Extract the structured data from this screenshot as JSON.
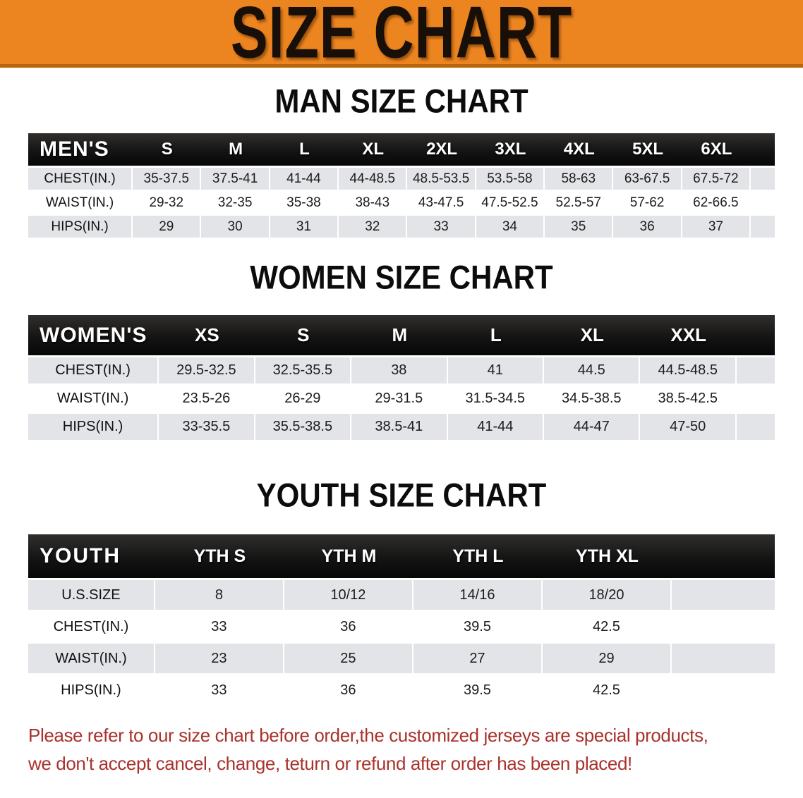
{
  "banner": {
    "title": "SIZE CHART"
  },
  "colors": {
    "banner_orange": "#EC8420",
    "banner_edge": "#B9650E",
    "header_bar": "#141414",
    "row_gray": "#E2E4E7",
    "disclaimer_red": "#A9322C"
  },
  "sections": [
    {
      "title": "MAN SIZE CHART",
      "table": {
        "header_label": "MEN'S",
        "columns": [
          "S",
          "M",
          "L",
          "XL",
          "2XL",
          "3XL",
          "4XL",
          "5XL",
          "6XL"
        ],
        "rows": [
          {
            "label": "CHEST(IN.)",
            "shade": "gray",
            "values": [
              "35-37.5",
              "37.5-41",
              "41-44",
              "44-48.5",
              "48.5-53.5",
              "53.5-58",
              "58-63",
              "63-67.5",
              "67.5-72"
            ]
          },
          {
            "label": "WAIST(IN.)",
            "shade": "white",
            "values": [
              "29-32",
              "32-35",
              "35-38",
              "38-43",
              "43-47.5",
              "47.5-52.5",
              "52.5-57",
              "57-62",
              "62-66.5"
            ]
          },
          {
            "label": "HIPS(IN.)",
            "shade": "gray",
            "values": [
              "29",
              "30",
              "31",
              "32",
              "33",
              "34",
              "35",
              "36",
              "37"
            ]
          }
        ]
      }
    },
    {
      "title": "WOMEN SIZE CHART",
      "table": {
        "header_label": "WOMEN'S",
        "columns": [
          "XS",
          "S",
          "M",
          "L",
          "XL",
          "XXL"
        ],
        "rows": [
          {
            "label": "CHEST(IN.)",
            "shade": "gray",
            "values": [
              "29.5-32.5",
              "32.5-35.5",
              "38",
              "41",
              "44.5",
              "44.5-48.5"
            ]
          },
          {
            "label": "WAIST(IN.)",
            "shade": "white",
            "values": [
              "23.5-26",
              "26-29",
              "29-31.5",
              "31.5-34.5",
              "34.5-38.5",
              "38.5-42.5"
            ]
          },
          {
            "label": "HIPS(IN.)",
            "shade": "gray",
            "values": [
              "33-35.5",
              "35.5-38.5",
              "38.5-41",
              "41-44",
              "44-47",
              "47-50"
            ]
          }
        ]
      }
    },
    {
      "title": "YOUTH SIZE CHART",
      "table": {
        "header_label": "YOUTH",
        "columns": [
          "YTH S",
          "YTH M",
          "YTH L",
          "YTH XL"
        ],
        "rows": [
          {
            "label": "U.S.SIZE",
            "shade": "gray",
            "values": [
              "8",
              "10/12",
              "14/16",
              "18/20"
            ]
          },
          {
            "label": "CHEST(IN.)",
            "shade": "white",
            "values": [
              "33",
              "36",
              "39.5",
              "42.5"
            ]
          },
          {
            "label": "WAIST(IN.)",
            "shade": "gray",
            "values": [
              "23",
              "25",
              "27",
              "29"
            ]
          },
          {
            "label": "HIPS(IN.)",
            "shade": "white",
            "values": [
              "33",
              "36",
              "39.5",
              "42.5"
            ]
          }
        ]
      }
    }
  ],
  "disclaimer": {
    "line1": "Please refer to our size chart before order,the customized jerseys are special products,",
    "line2": "we don't accept cancel, change, teturn or refund after order has been placed!"
  }
}
